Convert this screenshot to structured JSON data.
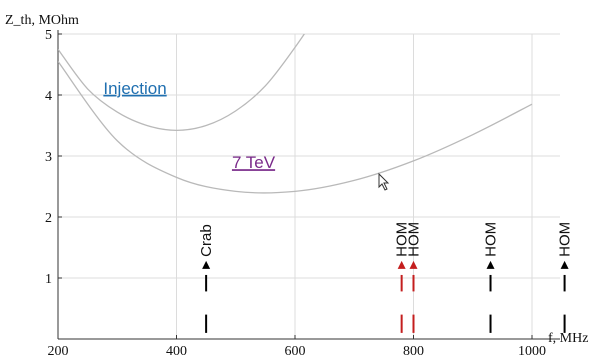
{
  "chart_data": {
    "type": "line",
    "xlabel": "f, MHz",
    "ylabel": "Z_th, MOhm",
    "xlim": [
      200,
      1000
    ],
    "ylim": [
      0,
      5
    ],
    "x_ticks": [
      200,
      400,
      600,
      800,
      1000
    ],
    "y_ticks": [
      1,
      2,
      3,
      4,
      5
    ],
    "grid": true,
    "series": [
      {
        "name": "Injection",
        "color": "#1f6fb0",
        "x": [
          200,
          250,
          300,
          350,
          400,
          450,
          500,
          550,
          600,
          650
        ],
        "y": [
          4.75,
          4.1,
          3.72,
          3.5,
          3.42,
          3.5,
          3.74,
          4.15,
          4.78,
          5.5
        ]
      },
      {
        "name": "7 TeV",
        "color": "#7a2a8a",
        "x": [
          200,
          300,
          400,
          500,
          600,
          700,
          800,
          900,
          1000
        ],
        "y": [
          4.55,
          3.25,
          2.65,
          2.42,
          2.42,
          2.6,
          2.92,
          3.35,
          3.85
        ]
      }
    ],
    "markers": [
      {
        "label": "Crab",
        "x": 450,
        "color": "#000000"
      },
      {
        "label": "HOM",
        "x": 780,
        "color": "#c41e1e"
      },
      {
        "label": "HOM",
        "x": 800,
        "color": "#c41e1e"
      },
      {
        "label": "HOM",
        "x": 930,
        "color": "#000000"
      },
      {
        "label": "HOM",
        "x": 1055,
        "color": "#000000"
      }
    ]
  }
}
